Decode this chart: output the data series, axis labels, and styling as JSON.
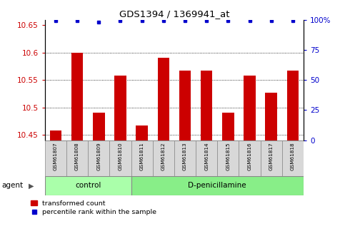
{
  "title": "GDS1394 / 1369941_at",
  "samples": [
    "GSM61807",
    "GSM61808",
    "GSM61809",
    "GSM61810",
    "GSM61811",
    "GSM61812",
    "GSM61813",
    "GSM61814",
    "GSM61815",
    "GSM61816",
    "GSM61817",
    "GSM61818"
  ],
  "bar_values": [
    10.458,
    10.6,
    10.49,
    10.558,
    10.467,
    10.59,
    10.567,
    10.567,
    10.49,
    10.558,
    10.527,
    10.567
  ],
  "percentile_values": [
    99,
    99,
    98,
    99,
    99,
    99,
    99,
    99,
    99,
    99,
    99,
    99
  ],
  "bar_color": "#cc0000",
  "dot_color": "#0000cc",
  "ylim_left": [
    10.44,
    10.66
  ],
  "ylim_right": [
    0,
    100
  ],
  "yticks_left": [
    10.45,
    10.5,
    10.55,
    10.6,
    10.65
  ],
  "yticks_right": [
    0,
    25,
    50,
    75,
    100
  ],
  "ytick_labels_left": [
    "10.45",
    "10.5",
    "10.55",
    "10.6",
    "10.65"
  ],
  "ytick_labels_right": [
    "0",
    "25",
    "50",
    "75",
    "100%"
  ],
  "control_n": 4,
  "treatment_n": 8,
  "control_label": "control",
  "treatment_label": "D-penicillamine",
  "agent_label": "agent",
  "legend_bar_label": "transformed count",
  "legend_dot_label": "percentile rank within the sample",
  "bar_width": 0.55,
  "background_color": "#ffffff",
  "panel_bg": "#d8d8d8",
  "control_bg": "#aaffaa",
  "treatment_bg": "#88ee88"
}
